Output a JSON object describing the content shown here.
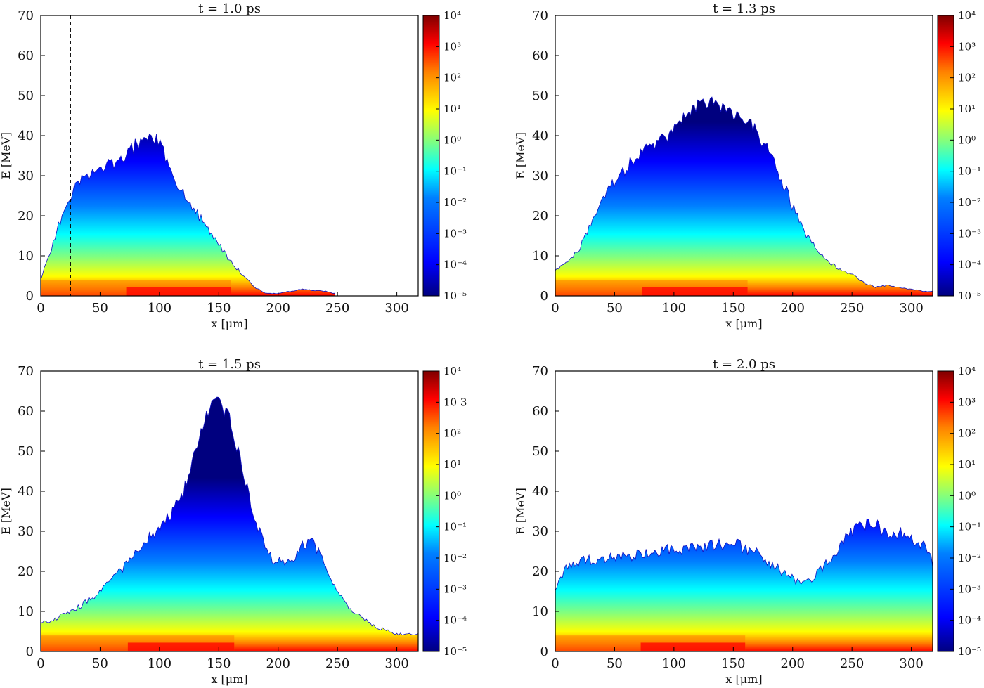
{
  "figure": {
    "colormap": [
      "#00007f",
      "#0000ff",
      "#0080ff",
      "#00ffff",
      "#80ff80",
      "#ffff00",
      "#ff8000",
      "#ff0000",
      "#7f0000"
    ],
    "grid": false
  },
  "chart_data": [
    {
      "type": "heatmap",
      "title": "t = 1.0 ps",
      "xlabel": "x [μm]",
      "ylabel": "E [MeV]",
      "xlim": [
        0,
        318
      ],
      "ylim": [
        0,
        70
      ],
      "xticks": [
        "0",
        "50",
        "100",
        "150",
        "200",
        "250",
        "300"
      ],
      "yticks": [
        "0",
        "10",
        "20",
        "30",
        "40",
        "50",
        "60",
        "70"
      ],
      "colorbar": {
        "scale": "log",
        "range": [
          1e-05,
          10000.0
        ],
        "tick_labels": [
          "10⁻⁵",
          "10⁻⁴",
          "10⁻³",
          "10⁻²",
          "10⁻¹",
          "10⁰",
          "10¹",
          "10²",
          "10³",
          "10⁴"
        ]
      },
      "vline": {
        "x": 25,
        "style": "dashed"
      },
      "envelope": {
        "x": [
          0,
          10,
          20,
          30,
          40,
          50,
          60,
          70,
          80,
          90,
          100,
          110,
          120,
          130,
          140,
          150,
          160,
          170,
          180,
          190,
          200,
          210,
          220,
          230,
          240,
          248
        ],
        "emax": [
          5,
          13,
          22,
          27,
          29,
          31,
          32,
          34,
          37,
          39,
          38,
          30,
          25,
          21,
          17,
          13,
          9,
          6,
          3,
          1.5,
          1.5,
          2,
          2.5,
          2.2,
          2,
          1.5
        ]
      },
      "core_end_x": 160
    },
    {
      "type": "heatmap",
      "title": "t = 1.3 ps",
      "xlabel": "x [μm]",
      "ylabel": "E [MeV]",
      "xlim": [
        0,
        318
      ],
      "ylim": [
        0,
        70
      ],
      "xticks": [
        "0",
        "50",
        "100",
        "150",
        "200",
        "250",
        "300"
      ],
      "yticks": [
        "0",
        "10",
        "20",
        "30",
        "40",
        "50",
        "60",
        "70"
      ],
      "colorbar": {
        "scale": "log",
        "range": [
          1e-05,
          10000.0
        ],
        "tick_labels": [
          "10⁻⁵",
          "10⁻⁴",
          "10⁻³",
          "10⁻²",
          "10⁻¹",
          "10⁰",
          "10¹",
          "10²",
          "10³",
          "10⁴"
        ]
      },
      "envelope": {
        "x": [
          0,
          10,
          20,
          30,
          40,
          50,
          60,
          70,
          80,
          90,
          100,
          110,
          120,
          130,
          140,
          150,
          160,
          170,
          180,
          190,
          200,
          210,
          220,
          230,
          240,
          250,
          260,
          270,
          280,
          290,
          300,
          310,
          318
        ],
        "emax": [
          7,
          9,
          12,
          18,
          24,
          28,
          31,
          35,
          37,
          38,
          41,
          44,
          47,
          48,
          46,
          45,
          44,
          40,
          35,
          29,
          22,
          16,
          12,
          9,
          7,
          6,
          4,
          3,
          3.5,
          3,
          2.5,
          2,
          2
        ]
      },
      "core_end_x": 162
    },
    {
      "type": "heatmap",
      "title": "t = 1.5 ps",
      "xlabel": "x [μm]",
      "ylabel": "E [MeV]",
      "xlim": [
        0,
        318
      ],
      "ylim": [
        0,
        70
      ],
      "xticks": [
        "0",
        "50",
        "100",
        "150",
        "200",
        "250",
        "300"
      ],
      "yticks": [
        "0",
        "10",
        "20",
        "30",
        "40",
        "50",
        "60",
        "70"
      ],
      "colorbar": {
        "scale": "log",
        "range": [
          1e-05,
          10000.0
        ],
        "tick_labels": [
          "10⁻⁵",
          "10⁻⁴",
          "10⁻³",
          "10⁻²",
          "10⁻¹",
          "10⁰",
          "10¹",
          "10²",
          "10 3",
          "10⁴"
        ]
      },
      "envelope": {
        "x": [
          0,
          10,
          20,
          30,
          40,
          50,
          60,
          70,
          80,
          90,
          100,
          110,
          120,
          130,
          140,
          145,
          150,
          160,
          170,
          180,
          190,
          200,
          210,
          220,
          230,
          240,
          250,
          260,
          270,
          280,
          290,
          300,
          310,
          318
        ],
        "emax": [
          8,
          8,
          10,
          11,
          13,
          15,
          18,
          21,
          24,
          27,
          30,
          34,
          39,
          50,
          58,
          63,
          61,
          57,
          44,
          33,
          24,
          22,
          22,
          26,
          27,
          21,
          15,
          11,
          9,
          7,
          6,
          5,
          5,
          5
        ]
      },
      "core_end_x": 163
    },
    {
      "type": "heatmap",
      "title": "t = 2.0 ps",
      "xlabel": "x [μm]",
      "ylabel": "E [MeV]",
      "xlim": [
        0,
        318
      ],
      "ylim": [
        0,
        70
      ],
      "xticks": [
        "0",
        "50",
        "100",
        "150",
        "200",
        "250",
        "300"
      ],
      "yticks": [
        "0",
        "10",
        "20",
        "30",
        "40",
        "50",
        "60",
        "70"
      ],
      "colorbar": {
        "scale": "log",
        "range": [
          1e-05,
          10000.0
        ],
        "tick_labels": [
          "10⁻⁵",
          "10⁻⁴",
          "10⁻³",
          "10⁻²",
          "10⁻¹",
          "10⁰",
          "10¹",
          "10²",
          "10³",
          "10⁴"
        ]
      },
      "envelope": {
        "x": [
          0,
          10,
          20,
          40,
          60,
          80,
          100,
          120,
          140,
          155,
          160,
          170,
          180,
          190,
          200,
          210,
          220,
          230,
          240,
          250,
          260,
          270,
          280,
          290,
          300,
          310,
          318
        ],
        "emax": [
          16,
          21,
          22,
          23,
          23.5,
          24,
          25,
          25.5,
          26,
          26,
          25,
          24,
          22,
          20,
          18,
          17,
          19,
          22,
          26,
          29,
          31,
          31,
          28,
          29,
          28,
          26,
          22
        ]
      },
      "core_end_x": 160
    }
  ]
}
